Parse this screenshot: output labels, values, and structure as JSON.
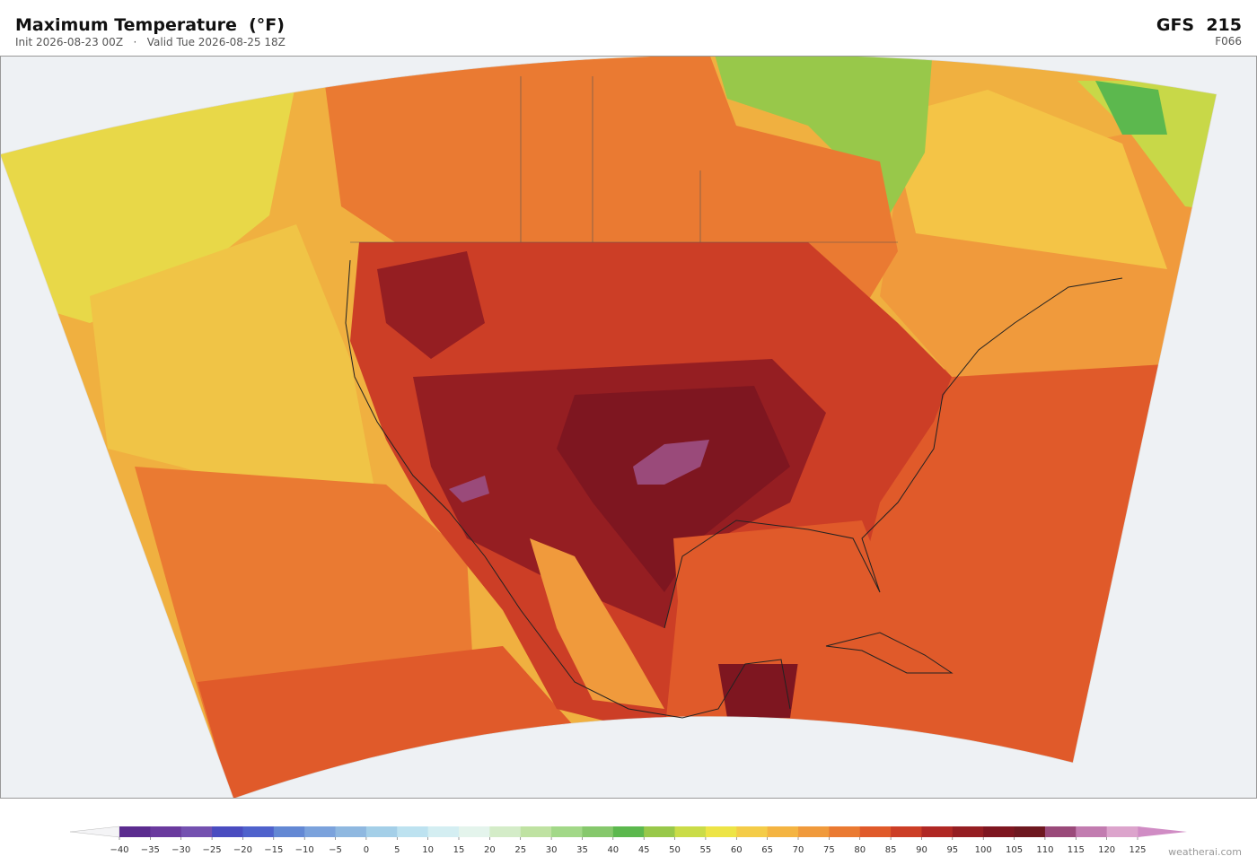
{
  "header": {
    "title": "Maximum Temperature  (°F)",
    "subtitle": "Init 2026-08-23 00Z   ·   Valid Tue 2026-08-25 18Z",
    "model": "GFS  215",
    "forecast_hour": "F066"
  },
  "colorbar": {
    "ticks": [
      {
        "value": -40,
        "label": "−40"
      },
      {
        "value": -35,
        "label": "−35"
      },
      {
        "value": -30,
        "label": "−30"
      },
      {
        "value": -25,
        "label": "−25"
      },
      {
        "value": -20,
        "label": "−20"
      },
      {
        "value": -15,
        "label": "−15"
      },
      {
        "value": -10,
        "label": "−10"
      },
      {
        "value": -5,
        "label": "−5"
      },
      0,
      5,
      10,
      15,
      20,
      25,
      30,
      35,
      40,
      45,
      50,
      55,
      60,
      65,
      70,
      75,
      80,
      85,
      90,
      95,
      100,
      105,
      110,
      115,
      120,
      125
    ],
    "colors": [
      "#5b2c8f",
      "#6a3a9e",
      "#7451b0",
      "#4a4cc0",
      "#4f62cc",
      "#6388d4",
      "#7ba2dc",
      "#8fb8e0",
      "#a4cfe8",
      "#bde2f0",
      "#d4eef2",
      "#e4f4ec",
      "#d4ecc8",
      "#bfe2a2",
      "#a2d888",
      "#86c86c",
      "#5cb84e",
      "#98c84a",
      "#cadc48",
      "#ede446",
      "#f4cc48",
      "#f4b442",
      "#f09a3c",
      "#ea7a32",
      "#e05a2a",
      "#cc3e26",
      "#b02824",
      "#951e22",
      "#7e1620",
      "#6e1820",
      "#9a4a7a",
      "#c27cb0",
      "#dca4cc"
    ],
    "under_color": "#f4f4f6",
    "over_color": "#d08cc4"
  },
  "footer": {
    "credit": "weatherai.com"
  }
}
